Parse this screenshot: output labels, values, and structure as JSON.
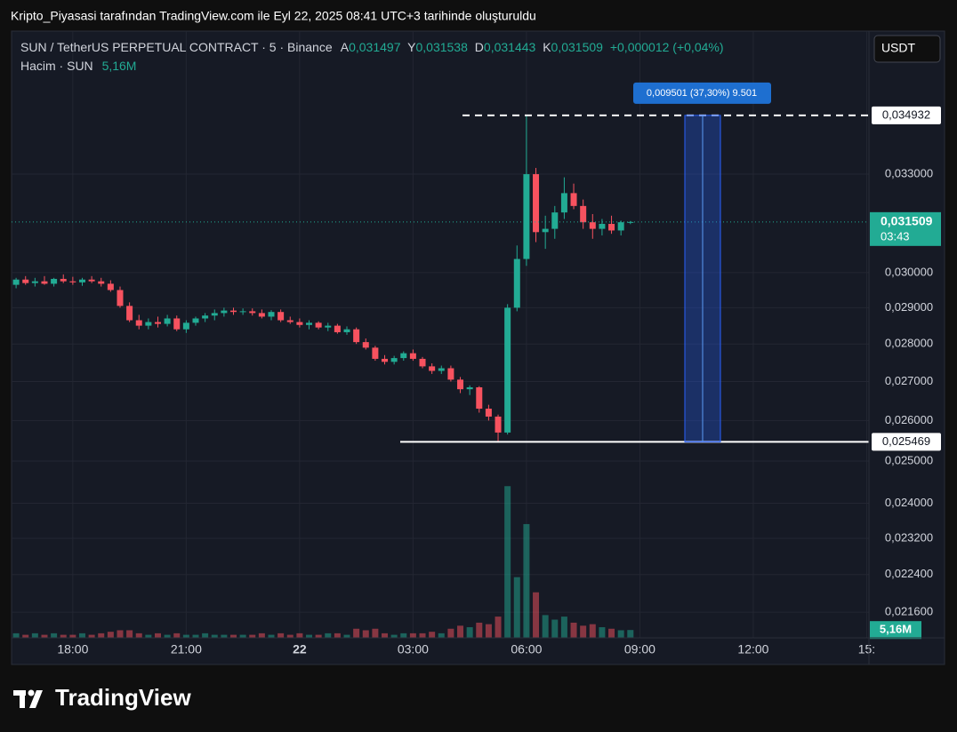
{
  "header": "Kripto_Piyasasi tarafından TradingView.com ile Eyl 22, 2025 08:41 UTC+3 tarihinde oluşturuldu",
  "chart_data": {
    "type": "candlestick",
    "title": "SUN / TetherUS PERPETUAL CONTRACT · 5 · Binance",
    "ohlc_legend": [
      {
        "key": "A",
        "label": "0,031497"
      },
      {
        "key": "Y",
        "label": "0,031538"
      },
      {
        "key": "D",
        "label": "0,031443"
      },
      {
        "key": "K",
        "label": "0,031509"
      }
    ],
    "change": "+0,000012 (+0,04%)",
    "volume_title": "Hacim · SUN",
    "volume_legend": "5,16M",
    "currency": "USDT",
    "colors": {
      "up": "#22ab94",
      "down": "#f7525f"
    },
    "log_scale": true,
    "grid": true,
    "x": [
      -7.5,
      -7.25,
      -7,
      -6.75,
      -6.5,
      -6.25,
      -6,
      -5.75,
      -5.5,
      -5.25,
      -5,
      -4.75,
      -4.5,
      -4.25,
      -4,
      -3.75,
      -3.5,
      -3.25,
      -3,
      -2.75,
      -2.5,
      -2.25,
      -2,
      -1.75,
      -1.5,
      -1.25,
      -1,
      -0.75,
      -0.5,
      -0.25,
      0,
      0.25,
      0.5,
      0.75,
      1,
      1.25,
      1.5,
      1.75,
      2,
      2.25,
      2.5,
      2.75,
      3,
      3.25,
      3.5,
      3.75,
      4,
      4.25,
      4.5,
      4.75,
      5,
      5.25,
      5.5,
      5.75,
      6,
      6.25,
      6.5,
      6.75,
      7,
      7.25,
      7.5,
      7.75,
      8,
      8.25,
      8.5,
      8.75
    ],
    "open": [
      0.02965,
      0.0298,
      0.0297,
      0.02975,
      0.02968,
      0.02982,
      0.02975,
      0.02972,
      0.0298,
      0.02975,
      0.02968,
      0.0295,
      0.02905,
      0.02865,
      0.0285,
      0.0286,
      0.02855,
      0.0287,
      0.0284,
      0.02858,
      0.0287,
      0.02878,
      0.02885,
      0.02892,
      0.02888,
      0.0289,
      0.02885,
      0.02875,
      0.02888,
      0.02865,
      0.0286,
      0.02852,
      0.02858,
      0.02845,
      0.0285,
      0.02832,
      0.0284,
      0.02805,
      0.0279,
      0.0276,
      0.02752,
      0.02762,
      0.02775,
      0.0276,
      0.0274,
      0.02728,
      0.02735,
      0.02705,
      0.0268,
      0.02685,
      0.0263,
      0.0261,
      0.0257,
      0.029,
      0.0304,
      0.033,
      0.0312,
      0.0313,
      0.0318,
      0.0324,
      0.032,
      0.0315,
      0.0313,
      0.03145,
      0.03125,
      0.031497
    ],
    "high": [
      0.02985,
      0.0299,
      0.02985,
      0.0299,
      0.02985,
      0.02995,
      0.02988,
      0.02985,
      0.0299,
      0.02985,
      0.02978,
      0.0296,
      0.02915,
      0.0288,
      0.0287,
      0.02875,
      0.0288,
      0.02878,
      0.02865,
      0.02875,
      0.02885,
      0.02895,
      0.029,
      0.029,
      0.02898,
      0.02898,
      0.02895,
      0.02893,
      0.02895,
      0.02875,
      0.0287,
      0.02865,
      0.02862,
      0.02858,
      0.02855,
      0.02848,
      0.02845,
      0.02815,
      0.02795,
      0.0277,
      0.02768,
      0.0278,
      0.02785,
      0.02765,
      0.02748,
      0.02742,
      0.02742,
      0.02712,
      0.0269,
      0.02688,
      0.0264,
      0.02615,
      0.0291,
      0.0308,
      0.034932,
      0.0332,
      0.0317,
      0.032,
      0.0329,
      0.0327,
      0.0322,
      0.03175,
      0.0316,
      0.0317,
      0.03155,
      0.031538
    ],
    "low": [
      0.02955,
      0.02965,
      0.0296,
      0.02965,
      0.0296,
      0.0297,
      0.02965,
      0.02962,
      0.0297,
      0.0296,
      0.02945,
      0.029,
      0.0286,
      0.0284,
      0.0284,
      0.02845,
      0.02848,
      0.02835,
      0.0283,
      0.0285,
      0.0286,
      0.02865,
      0.02875,
      0.0288,
      0.0288,
      0.02878,
      0.0287,
      0.02865,
      0.0286,
      0.02855,
      0.02845,
      0.0284,
      0.0284,
      0.02835,
      0.02828,
      0.02825,
      0.028,
      0.02785,
      0.02755,
      0.02745,
      0.02745,
      0.02755,
      0.02755,
      0.02735,
      0.0272,
      0.0272,
      0.027,
      0.0267,
      0.02665,
      0.0262,
      0.026,
      0.025469,
      0.02565,
      0.0289,
      0.0302,
      0.0309,
      0.0307,
      0.031,
      0.0316,
      0.0319,
      0.0313,
      0.031,
      0.0311,
      0.03115,
      0.0311,
      0.031443
    ],
    "close": [
      0.0298,
      0.0297,
      0.02975,
      0.02968,
      0.02982,
      0.02975,
      0.02972,
      0.0298,
      0.02975,
      0.02968,
      0.0295,
      0.02905,
      0.02865,
      0.0285,
      0.0286,
      0.02855,
      0.0287,
      0.0284,
      0.02858,
      0.0287,
      0.02878,
      0.02885,
      0.02892,
      0.02888,
      0.0289,
      0.02885,
      0.02875,
      0.02888,
      0.02865,
      0.0286,
      0.02852,
      0.02858,
      0.02845,
      0.0285,
      0.02832,
      0.0284,
      0.02805,
      0.0279,
      0.0276,
      0.02752,
      0.02762,
      0.02775,
      0.0276,
      0.0274,
      0.02728,
      0.02735,
      0.02705,
      0.0268,
      0.02685,
      0.0263,
      0.0261,
      0.0257,
      0.029,
      0.0304,
      0.033,
      0.0312,
      0.0313,
      0.0318,
      0.0324,
      0.032,
      0.0315,
      0.0313,
      0.03145,
      0.03125,
      0.0315,
      0.031509
    ],
    "volume": [
      3,
      2,
      3,
      2,
      3,
      2,
      2,
      3,
      2,
      3,
      4,
      5,
      5,
      3,
      2,
      3,
      2,
      3,
      2,
      2,
      3,
      2,
      2,
      2,
      2,
      2,
      3,
      2,
      3,
      2,
      3,
      2,
      2,
      3,
      3,
      2,
      6,
      5,
      6,
      3,
      2,
      3,
      3,
      3,
      4,
      3,
      6,
      8,
      7,
      10,
      9,
      14,
      100,
      40,
      75,
      30,
      15,
      12,
      14,
      10,
      8,
      9,
      7,
      6,
      5,
      5.16
    ],
    "xlim": [
      -7.62,
      15.06
    ],
    "xticks": [
      {
        "value": -6,
        "label": "18:00"
      },
      {
        "value": -3,
        "label": "21:00"
      },
      {
        "value": 0,
        "label": "22"
      },
      {
        "value": 3,
        "label": "03:00"
      },
      {
        "value": 6,
        "label": "06:00"
      },
      {
        "value": 9,
        "label": "09:00"
      },
      {
        "value": 12,
        "label": "12:00"
      },
      {
        "value": 15,
        "label": "15:"
      }
    ],
    "ylim": [
      0.02107,
      0.0379
    ],
    "yticks": [
      {
        "value": 0.033,
        "label": "0,033000"
      },
      {
        "value": 0.03,
        "label": "0,030000"
      },
      {
        "value": 0.029,
        "label": "0,029000"
      },
      {
        "value": 0.028,
        "label": "0,028000"
      },
      {
        "value": 0.027,
        "label": "0,027000"
      },
      {
        "value": 0.026,
        "label": "0,026000"
      },
      {
        "value": 0.025,
        "label": "0,025000"
      },
      {
        "value": 0.024,
        "label": "0,024000"
      },
      {
        "value": 0.0232,
        "label": "0,023200"
      },
      {
        "value": 0.0224,
        "label": "0,022400"
      },
      {
        "value": 0.0216,
        "label": "0,021600"
      }
    ],
    "y2lim": [
      0,
      400
    ],
    "last_price": {
      "value": 0.031509,
      "label": "0,031509"
    },
    "countdown": "03:43",
    "volume_label": {
      "value": 5.16,
      "label": "5,16M"
    },
    "hlines": [
      {
        "value": 0.034932,
        "label": "0,034932",
        "style": "dashed"
      },
      {
        "value": 0.025469,
        "label": "0,025469",
        "style": "solid"
      }
    ],
    "measure": {
      "label": "0,009501 (37,30%) 9.501"
    }
  },
  "footer": {
    "logo": "TradingView"
  }
}
